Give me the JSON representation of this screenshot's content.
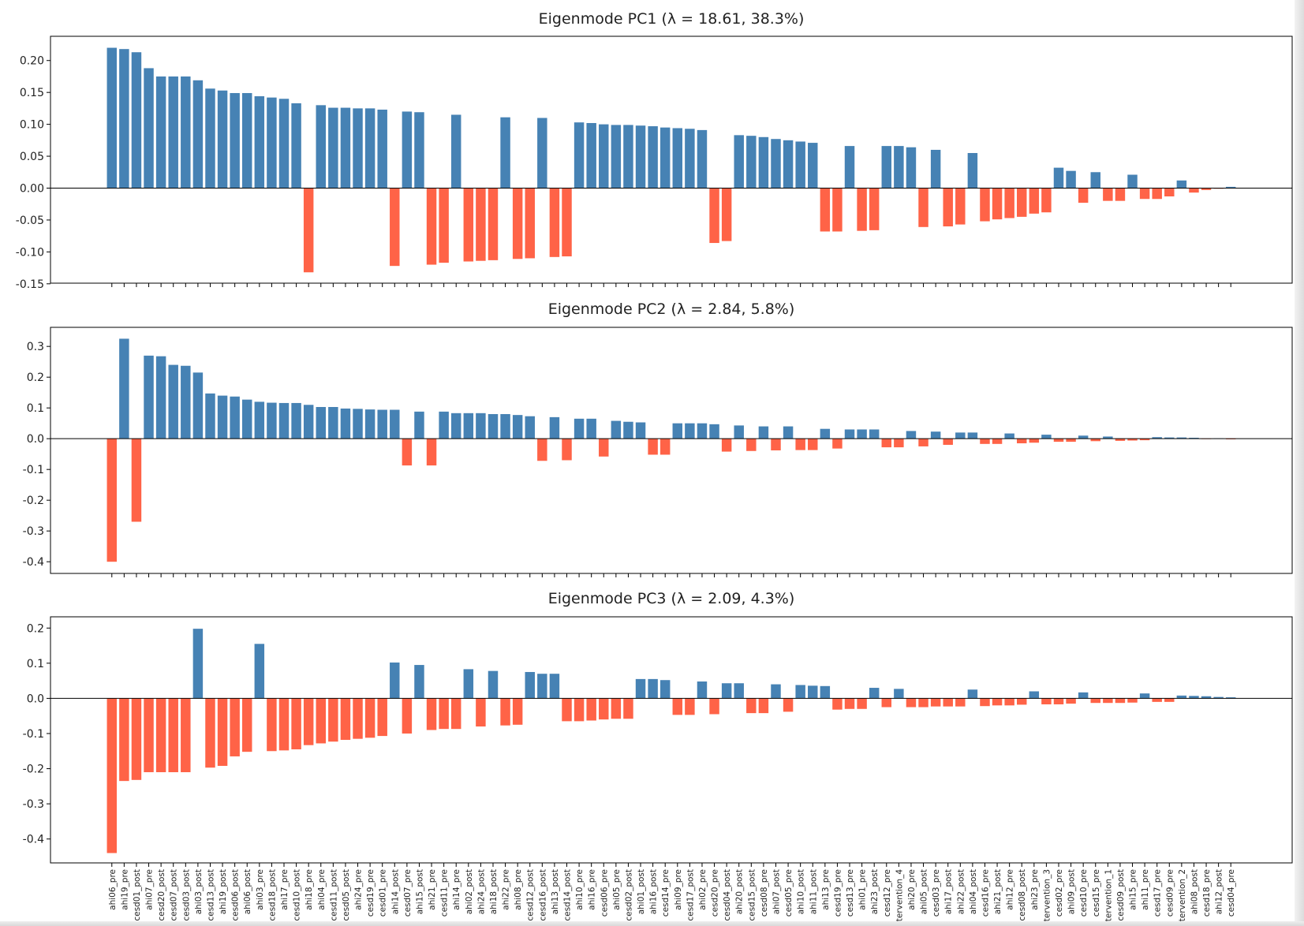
{
  "chart_data": {
    "type": "bar",
    "colors": {
      "positive": "#4682b4",
      "negative": "#ff6347"
    },
    "grid": false,
    "categories": [
      "ahi06_pre",
      "ahi19_pre",
      "cesd01_post",
      "ahi07_pre",
      "cesd20_post",
      "cesd07_post",
      "cesd03_post",
      "ahi03_post",
      "cesd13_post",
      "ahi19_post",
      "cesd06_post",
      "ahi06_post",
      "ahi03_pre",
      "cesd18_post",
      "ahi17_pre",
      "cesd10_post",
      "ahi18_pre",
      "ahi04_pre",
      "cesd11_post",
      "cesd05_post",
      "ahi24_pre",
      "cesd19_pre",
      "cesd01_pre",
      "ahi14_post",
      "cesd07_pre",
      "ahi15_post",
      "ahi21_pre",
      "cesd11_pre",
      "ahi14_pre",
      "ahi02_post",
      "ahi24_post",
      "ahi18_post",
      "ahi22_pre",
      "ahi08_pre",
      "cesd12_post",
      "cesd16_post",
      "ahi13_post",
      "cesd14_post",
      "ahi10_pre",
      "ahi16_pre",
      "cesd06_pre",
      "ahi05_pre",
      "cesd02_post",
      "ahi01_post",
      "ahi16_post",
      "cesd14_pre",
      "ahi09_pre",
      "cesd17_post",
      "ahi02_pre",
      "cesd20_pre",
      "cesd04_post",
      "ahi20_post",
      "cesd15_post",
      "cesd08_pre",
      "ahi07_post",
      "cesd05_pre",
      "ahi10_post",
      "ahi11_post",
      "ahi13_pre",
      "cesd19_pre",
      "cesd13_pre",
      "ahi01_pre",
      "ahi23_post",
      "cesd12_pre",
      "intervention_4",
      "ahi20_pre",
      "ahi05_post",
      "cesd03_pre",
      "ahi17_post",
      "ahi22_post",
      "ahi04_post",
      "cesd16_pre",
      "ahi21_post",
      "ahi12_pre",
      "cesd08_post",
      "ahi23_pre",
      "intervention_3",
      "cesd02_pre",
      "ahi09_post",
      "cesd10_pre",
      "cesd15_pre",
      "intervention_1",
      "cesd09_post",
      "ahi15_pre",
      "ahi11_pre",
      "cesd17_pre",
      "cesd09_pre",
      "intervention_2",
      "ahi08_post",
      "cesd18_pre",
      "ahi12_post",
      "cesd04_pre"
    ],
    "panels": [
      {
        "title": "Eigenmode PC1  (λ = 18.61, 38.3%)",
        "ylim": [
          -0.149,
          0.238
        ],
        "yticks": [
          "-0.15",
          "-0.10",
          "-0.05",
          "0.00",
          "0.05",
          "0.10",
          "0.15",
          "0.20"
        ],
        "values": [
          0.22,
          0.218,
          0.213,
          0.188,
          0.175,
          0.175,
          0.175,
          0.169,
          0.156,
          0.153,
          0.149,
          0.149,
          0.144,
          0.142,
          0.14,
          0.133,
          -0.132,
          0.13,
          0.126,
          0.126,
          0.125,
          0.125,
          0.123,
          -0.122,
          0.12,
          0.119,
          -0.12,
          -0.117,
          0.115,
          -0.115,
          -0.114,
          -0.113,
          0.111,
          -0.111,
          -0.11,
          0.11,
          -0.108,
          -0.107,
          0.103,
          0.102,
          0.1,
          0.099,
          0.099,
          0.098,
          0.097,
          0.095,
          0.094,
          0.093,
          0.091,
          -0.086,
          -0.083,
          0.083,
          0.082,
          0.08,
          0.077,
          0.075,
          0.073,
          0.071,
          -0.068,
          -0.068,
          0.066,
          -0.067,
          -0.066,
          0.066,
          0.066,
          0.064,
          -0.061,
          0.06,
          -0.06,
          -0.057,
          0.055,
          -0.052,
          -0.049,
          -0.047,
          -0.045,
          -0.04,
          -0.038,
          0.032,
          0.027,
          -0.023,
          0.025,
          -0.02,
          -0.02,
          0.021,
          -0.017,
          -0.017,
          -0.013,
          0.012,
          -0.007,
          -0.003,
          -0.001,
          0.002
        ]
      },
      {
        "title": "Eigenmode PC2  (λ = 2.84, 5.8%)",
        "ylim": [
          -0.438,
          0.362
        ],
        "yticks": [
          "-0.4",
          "-0.3",
          "-0.2",
          "-0.1",
          "0.0",
          "0.1",
          "0.2",
          "0.3"
        ],
        "values": [
          -0.4,
          0.325,
          -0.27,
          0.27,
          0.268,
          0.24,
          0.237,
          0.215,
          0.147,
          0.14,
          0.137,
          0.127,
          0.12,
          0.117,
          0.116,
          0.116,
          0.11,
          0.103,
          0.103,
          0.098,
          0.097,
          0.095,
          0.094,
          0.094,
          -0.087,
          0.088,
          -0.087,
          0.088,
          0.083,
          0.083,
          0.083,
          0.08,
          0.08,
          0.077,
          0.073,
          -0.072,
          0.07,
          -0.07,
          0.065,
          0.065,
          -0.058,
          0.058,
          0.055,
          0.053,
          -0.052,
          -0.052,
          0.05,
          0.05,
          0.05,
          0.047,
          -0.042,
          0.043,
          -0.04,
          0.04,
          -0.038,
          0.04,
          -0.037,
          -0.037,
          0.032,
          -0.032,
          0.03,
          0.03,
          0.03,
          -0.028,
          -0.028,
          0.025,
          -0.025,
          0.023,
          -0.02,
          0.02,
          0.02,
          -0.017,
          -0.017,
          0.017,
          -0.015,
          -0.013,
          0.013,
          -0.01,
          -0.01,
          0.01,
          -0.008,
          0.007,
          -0.007,
          -0.006,
          -0.005,
          0.005,
          0.004,
          0.004,
          0.003,
          -0.001,
          0.001,
          -0.002
        ]
      },
      {
        "title": "Eigenmode PC3  (λ = 2.09, 4.3%)",
        "ylim": [
          -0.468,
          0.232
        ],
        "yticks": [
          "-0.4",
          "-0.3",
          "-0.2",
          "-0.1",
          "0.0",
          "0.1",
          "0.2"
        ],
        "values": [
          -0.44,
          -0.235,
          -0.232,
          -0.21,
          -0.21,
          -0.21,
          -0.21,
          0.198,
          -0.197,
          -0.192,
          -0.165,
          -0.152,
          0.155,
          -0.15,
          -0.148,
          -0.145,
          -0.133,
          -0.128,
          -0.123,
          -0.118,
          -0.115,
          -0.112,
          -0.107,
          0.102,
          -0.1,
          0.095,
          -0.09,
          -0.087,
          -0.087,
          0.083,
          -0.08,
          0.078,
          -0.077,
          -0.075,
          0.075,
          0.07,
          0.07,
          -0.065,
          -0.065,
          -0.063,
          -0.06,
          -0.058,
          -0.058,
          0.055,
          0.055,
          0.052,
          -0.047,
          -0.047,
          0.048,
          -0.045,
          0.043,
          0.043,
          -0.042,
          -0.042,
          0.04,
          -0.038,
          0.038,
          0.036,
          0.035,
          -0.032,
          -0.03,
          -0.03,
          0.03,
          -0.025,
          0.027,
          -0.025,
          -0.025,
          -0.023,
          -0.023,
          -0.023,
          0.025,
          -0.022,
          -0.02,
          -0.02,
          -0.018,
          0.02,
          -0.017,
          -0.017,
          -0.015,
          0.017,
          -0.013,
          -0.013,
          -0.013,
          -0.012,
          0.014,
          -0.01,
          -0.01,
          0.008,
          0.007,
          0.006,
          0.004,
          0.003
        ]
      }
    ]
  }
}
